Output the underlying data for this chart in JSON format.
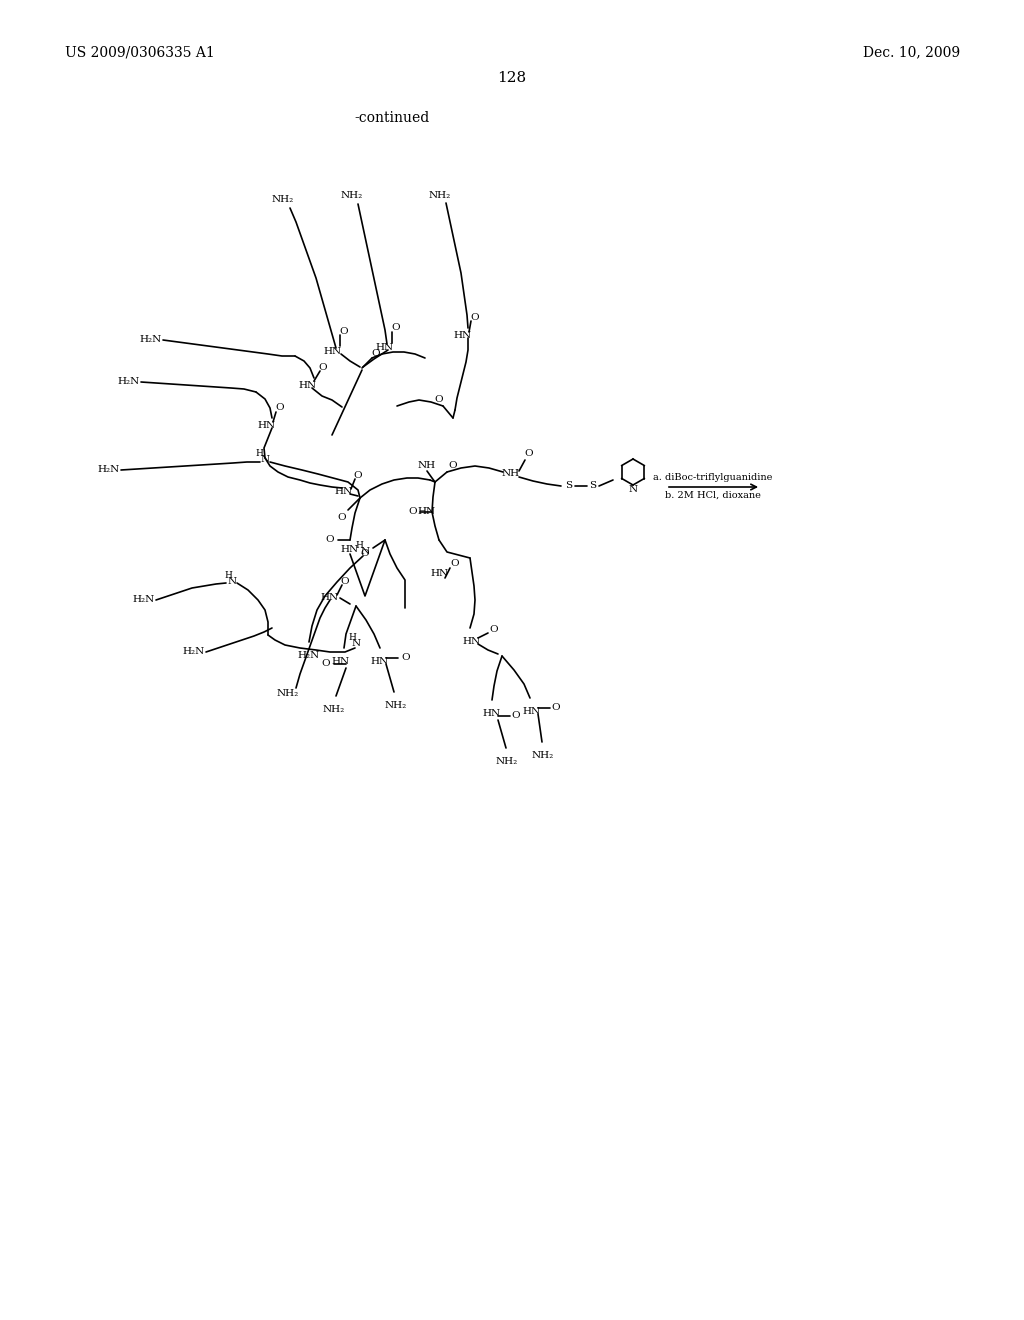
{
  "page_header_left": "US 2009/0306335 A1",
  "page_header_right": "Dec. 10, 2009",
  "page_number": "128",
  "continued_label": "-continued",
  "background_color": "#ffffff",
  "text_color": "#000000",
  "arrow_label_a": "a. diBoc-triflylguanidine",
  "arrow_label_b": "b. 2M HCl, dioxane",
  "lw": 1.2
}
